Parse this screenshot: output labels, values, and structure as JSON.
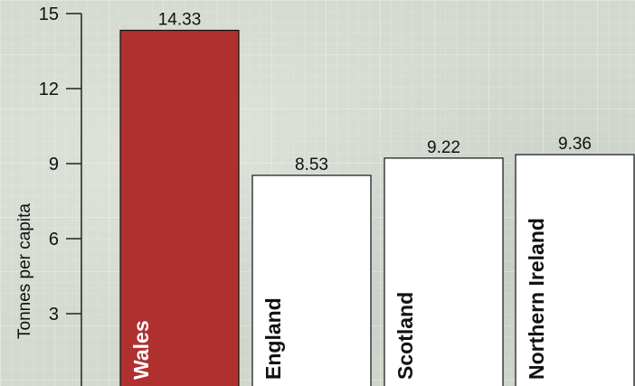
{
  "chart_data": {
    "type": "bar",
    "categories": [
      "Wales",
      "England",
      "Scotland",
      "Northern Ireland"
    ],
    "values": [
      14.33,
      8.53,
      9.22,
      9.36
    ],
    "data_labels": [
      "14.33",
      "8.53",
      "9.22",
      "9.36"
    ],
    "ylabel": "Tonnes per capita",
    "xlabel": "",
    "title": "",
    "ylim": [
      0,
      15
    ],
    "yticks": [
      3,
      6,
      9,
      12,
      15
    ],
    "ytick_labels": [
      "3",
      "6",
      "9",
      "12",
      "15"
    ],
    "grid": false,
    "legend": "none",
    "colors": {
      "highlight_fill": "#b03030",
      "highlight_text": "#ffffff",
      "bar_fill": "#ffffff",
      "bar_stroke": "#111111",
      "bar_text": "#111111"
    },
    "highlight_index": 0
  }
}
